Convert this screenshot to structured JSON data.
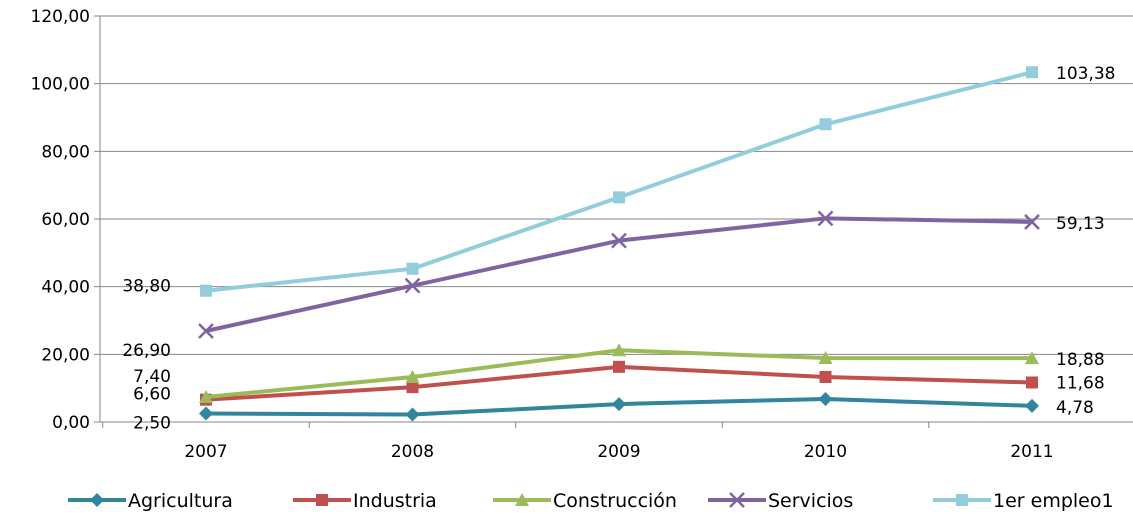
{
  "chart_data": {
    "type": "line",
    "categories": [
      "2007",
      "2008",
      "2009",
      "2010",
      "2011"
    ],
    "ylim": [
      0,
      120
    ],
    "yticks": [
      "0,00",
      "20,00",
      "40,00",
      "60,00",
      "80,00",
      "100,00",
      "120,00"
    ],
    "grid": true,
    "legend_position": "bottom",
    "series": [
      {
        "name": "Agricultura",
        "color": "#31859C",
        "marker": "diamond",
        "values": [
          2.5,
          2.2,
          5.3,
          6.8,
          4.78
        ],
        "labels": [
          {
            "index": 0,
            "text": "2,50"
          },
          {
            "index": 4,
            "text": "4,78"
          }
        ]
      },
      {
        "name": "Industria",
        "color": "#C0504D",
        "marker": "square",
        "values": [
          6.6,
          10.3,
          16.3,
          13.3,
          11.68
        ],
        "labels": [
          {
            "index": 0,
            "text": "6,60"
          },
          {
            "index": 4,
            "text": "11,68"
          }
        ]
      },
      {
        "name": "Construcción",
        "color": "#9BBB59",
        "marker": "triangle",
        "values": [
          7.4,
          13.3,
          21.2,
          18.9,
          18.88
        ],
        "labels": [
          {
            "index": 0,
            "text": "7,40"
          },
          {
            "index": 4,
            "text": "18,88"
          }
        ]
      },
      {
        "name": "Servicios",
        "color": "#8064A2",
        "marker": "x",
        "values": [
          26.9,
          40.3,
          53.6,
          60.2,
          59.13
        ],
        "labels": [
          {
            "index": 0,
            "text": "26,90"
          },
          {
            "index": 4,
            "text": "59,13"
          }
        ]
      },
      {
        "name": "1er empleo1",
        "color": "#93CDDD",
        "marker": "square",
        "values": [
          38.8,
          45.3,
          66.4,
          88.0,
          103.38
        ],
        "labels": [
          {
            "index": 0,
            "text": "38,80"
          },
          {
            "index": 4,
            "text": "103,38"
          }
        ]
      }
    ]
  }
}
